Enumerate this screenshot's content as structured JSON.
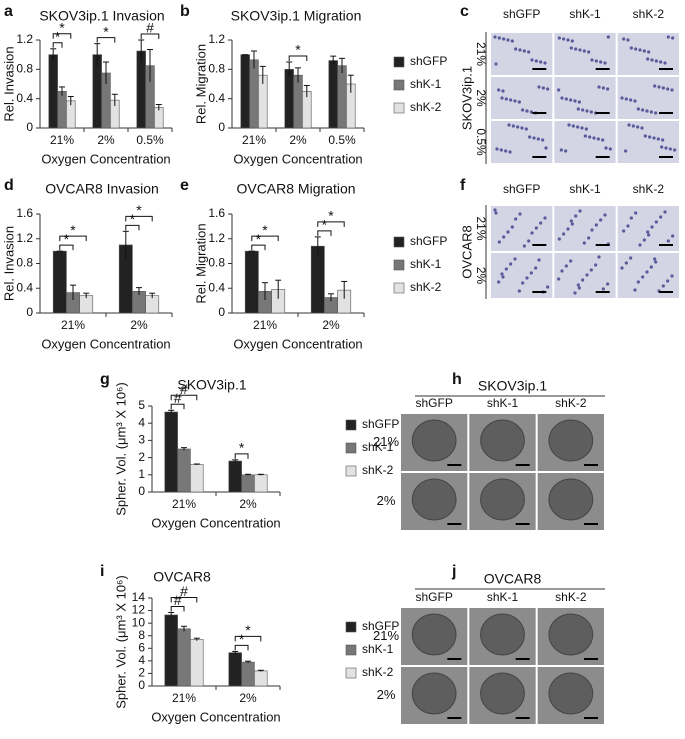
{
  "chart_data": [
    {
      "type": "bar",
      "panel": "a",
      "title": "SKOV3ip.1 Invasion",
      "ylabel": "Rel. Invasion",
      "xlabel": "Oxygen Concentration",
      "legend": false,
      "categories": [
        "21%",
        "2%",
        "0.5%"
      ],
      "ylim": [
        0,
        1.2
      ],
      "yticks": [
        0,
        0.4,
        0.8,
        1.2
      ],
      "series": [
        {
          "name": "shGFP",
          "color": "#222222",
          "values": [
            1,
            1,
            1.05
          ],
          "errors": [
            0.08,
            0.15,
            0.15
          ]
        },
        {
          "name": "shK-1",
          "color": "#777777",
          "values": [
            0.5,
            0.75,
            0.85
          ],
          "errors": [
            0.06,
            0.15,
            0.22
          ]
        },
        {
          "name": "shK-2",
          "color": "#e2e2e2",
          "values": [
            0.37,
            0.38,
            0.28
          ],
          "errors": [
            0.06,
            0.08,
            0.04
          ]
        }
      ],
      "annotations": [
        {
          "label": "*",
          "category": "21%",
          "between": [
            "shGFP",
            "shK-1"
          ]
        },
        {
          "label": "*",
          "category": "21%",
          "between": [
            "shGFP",
            "shK-2"
          ]
        },
        {
          "label": "*",
          "category": "2%",
          "between": [
            "shGFP",
            "shK-2"
          ]
        },
        {
          "label": "#",
          "category": "0.5%",
          "between": [
            "shGFP",
            "shK-2"
          ]
        }
      ]
    },
    {
      "type": "bar",
      "panel": "b",
      "title": "SKOV3ip.1 Migration",
      "ylabel": "Rel. Migration",
      "xlabel": "Oxygen Concentration",
      "legend": true,
      "categories": [
        "21%",
        "2%",
        "0.5%"
      ],
      "ylim": [
        0,
        1.2
      ],
      "yticks": [
        0,
        0.4,
        0.8,
        1.2
      ],
      "series": [
        {
          "name": "shGFP",
          "color": "#222222",
          "values": [
            1,
            0.8,
            0.92
          ],
          "errors": [
            0,
            0.1,
            0.06
          ]
        },
        {
          "name": "shK-1",
          "color": "#777777",
          "values": [
            0.93,
            0.72,
            0.85
          ],
          "errors": [
            0.12,
            0.1,
            0.1
          ]
        },
        {
          "name": "shK-2",
          "color": "#e2e2e2",
          "values": [
            0.72,
            0.5,
            0.6
          ],
          "errors": [
            0.12,
            0.08,
            0.12
          ]
        }
      ],
      "annotations": [
        {
          "label": "*",
          "category": "2%",
          "between": [
            "shGFP",
            "shK-2"
          ]
        }
      ]
    },
    {
      "type": "bar",
      "panel": "d",
      "title": "OVCAR8 Invasion",
      "ylabel": "Rel. Invasion",
      "xlabel": "Oxygen Concentration",
      "legend": false,
      "categories": [
        "21%",
        "2%"
      ],
      "ylim": [
        0,
        1.6
      ],
      "yticks": [
        0,
        0.4,
        0.8,
        1.2,
        1.6
      ],
      "series": [
        {
          "name": "shGFP",
          "color": "#222222",
          "values": [
            1,
            1.1
          ],
          "errors": [
            0,
            0.22
          ]
        },
        {
          "name": "shK-1",
          "color": "#777777",
          "values": [
            0.33,
            0.35
          ],
          "errors": [
            0.12,
            0.06
          ]
        },
        {
          "name": "shK-2",
          "color": "#e2e2e2",
          "values": [
            0.28,
            0.28
          ],
          "errors": [
            0.04,
            0.04
          ]
        }
      ],
      "annotations": [
        {
          "label": "*",
          "category": "21%",
          "between": [
            "shGFP",
            "shK-1"
          ]
        },
        {
          "label": "*",
          "category": "21%",
          "between": [
            "shGFP",
            "shK-2"
          ]
        },
        {
          "label": "*",
          "category": "2%",
          "between": [
            "shGFP",
            "shK-1"
          ]
        },
        {
          "label": "*",
          "category": "2%",
          "between": [
            "shGFP",
            "shK-2"
          ]
        }
      ]
    },
    {
      "type": "bar",
      "panel": "e",
      "title": "OVCAR8 Migration",
      "ylabel": "Rel. Migration",
      "xlabel": "Oxygen Concentration",
      "legend": true,
      "categories": [
        "21%",
        "2%"
      ],
      "ylim": [
        0,
        1.6
      ],
      "yticks": [
        0,
        0.4,
        0.8,
        1.2,
        1.6
      ],
      "series": [
        {
          "name": "shGFP",
          "color": "#222222",
          "values": [
            1,
            1.08
          ],
          "errors": [
            0,
            0.15
          ]
        },
        {
          "name": "shK-1",
          "color": "#777777",
          "values": [
            0.35,
            0.25
          ],
          "errors": [
            0.14,
            0.06
          ]
        },
        {
          "name": "shK-2",
          "color": "#e2e2e2",
          "values": [
            0.38,
            0.37
          ],
          "errors": [
            0.15,
            0.14
          ]
        }
      ],
      "annotations": [
        {
          "label": "*",
          "category": "21%",
          "between": [
            "shGFP",
            "shK-1"
          ]
        },
        {
          "label": "*",
          "category": "21%",
          "between": [
            "shGFP",
            "shK-2"
          ]
        },
        {
          "label": "*",
          "category": "2%",
          "between": [
            "shGFP",
            "shK-1"
          ]
        },
        {
          "label": "*",
          "category": "2%",
          "between": [
            "shGFP",
            "shK-2"
          ]
        }
      ]
    },
    {
      "type": "bar",
      "panel": "g",
      "title": "SKOV3ip.1",
      "ylabel": "Spher. Vol. (μm³ X 10⁶)",
      "xlabel": "Oxygen Concentration",
      "legend": true,
      "categories": [
        "21%",
        "2%"
      ],
      "ylim": [
        0,
        5
      ],
      "yticks": [
        0,
        1,
        2,
        3,
        4,
        5
      ],
      "series": [
        {
          "name": "shGFP",
          "color": "#222222",
          "values": [
            4.65,
            1.8
          ],
          "errors": [
            0.1,
            0.07
          ]
        },
        {
          "name": "shK-1",
          "color": "#777777",
          "values": [
            2.5,
            1.0
          ],
          "errors": [
            0.08,
            0.03
          ]
        },
        {
          "name": "shK-2",
          "color": "#e2e2e2",
          "values": [
            1.6,
            1.0
          ],
          "errors": [
            0.03,
            0.03
          ]
        }
      ],
      "annotations": [
        {
          "label": "#",
          "category": "21%",
          "between": [
            "shGFP",
            "shK-1"
          ]
        },
        {
          "label": "#",
          "category": "21%",
          "between": [
            "shGFP",
            "shK-2"
          ]
        },
        {
          "label": "*",
          "category": "2%",
          "between": [
            "shGFP",
            "shK-1"
          ]
        }
      ]
    },
    {
      "type": "bar",
      "panel": "i",
      "title": "OVCAR8",
      "ylabel": "Spher. Vol. (μm³ X 10⁶)",
      "xlabel": "Oxygen Concentration",
      "legend": true,
      "categories": [
        "21%",
        "2%"
      ],
      "ylim": [
        0,
        14
      ],
      "yticks": [
        0,
        2,
        4,
        6,
        8,
        10,
        12,
        14
      ],
      "series": [
        {
          "name": "shGFP",
          "color": "#222222",
          "values": [
            11.3,
            5.3
          ],
          "errors": [
            0.4,
            0.2
          ]
        },
        {
          "name": "shK-1",
          "color": "#777777",
          "values": [
            9.1,
            3.8
          ],
          "errors": [
            0.4,
            0.15
          ]
        },
        {
          "name": "shK-2",
          "color": "#e2e2e2",
          "values": [
            7.4,
            2.4
          ],
          "errors": [
            0.2,
            0.1
          ]
        }
      ],
      "annotations": [
        {
          "label": "#",
          "category": "21%",
          "between": [
            "shGFP",
            "shK-1"
          ]
        },
        {
          "label": "#",
          "category": "21%",
          "between": [
            "shGFP",
            "shK-2"
          ]
        },
        {
          "label": "*",
          "category": "2%",
          "between": [
            "shGFP",
            "shK-1"
          ]
        },
        {
          "label": "*",
          "category": "2%",
          "between": [
            "shGFP",
            "shK-2"
          ]
        }
      ]
    }
  ],
  "image_panels": [
    {
      "panel": "c",
      "group": "SKOV3ip.1",
      "columns": [
        "shGFP",
        "shK-1",
        "shK-2"
      ],
      "rows": [
        "21%",
        "2%",
        "0.5%"
      ]
    },
    {
      "panel": "f",
      "group": "OVCAR8",
      "columns": [
        "shGFP",
        "shK-1",
        "shK-2"
      ],
      "rows": [
        "21%",
        "2%"
      ]
    },
    {
      "panel": "h",
      "group": "SKOV3ip.1",
      "columns": [
        "shGFP",
        "shK-1",
        "shK-2"
      ],
      "rows": [
        "21%",
        "2%"
      ]
    },
    {
      "panel": "j",
      "group": "OVCAR8",
      "columns": [
        "shGFP",
        "shK-1",
        "shK-2"
      ],
      "rows": [
        "21%",
        "2%"
      ]
    }
  ]
}
